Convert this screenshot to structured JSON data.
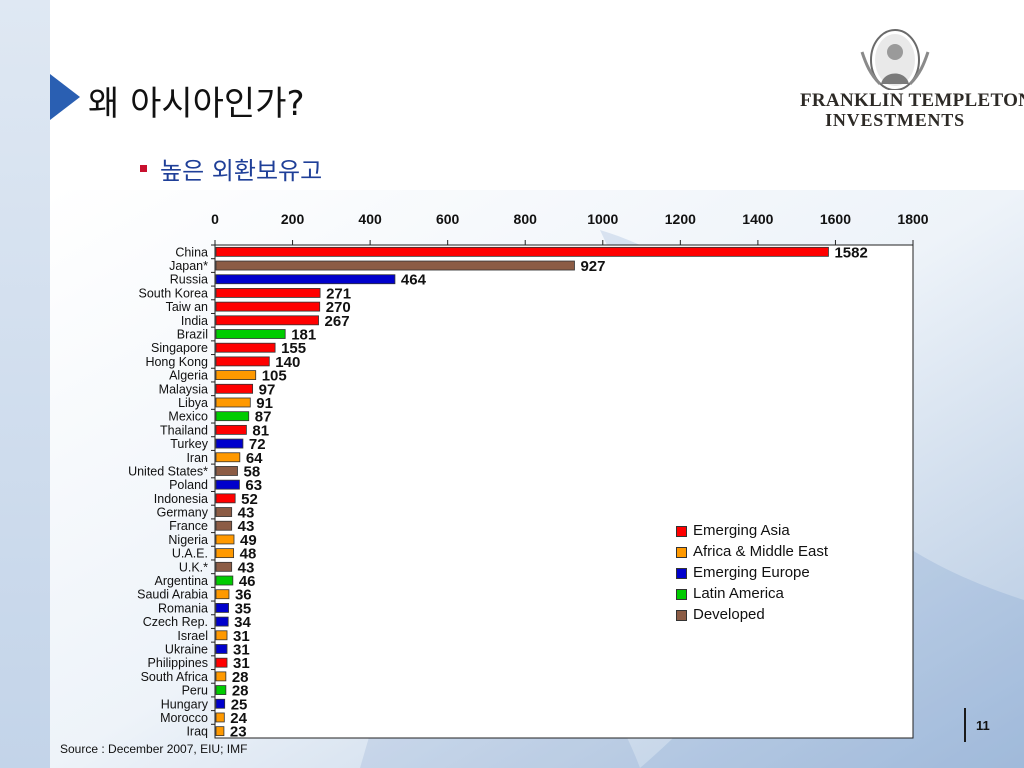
{
  "slide": {
    "title": "왜 아시아인가?",
    "bullet": "높은 외환보유고",
    "source": "Source : December 2007, EIU; IMF",
    "page_number": "11"
  },
  "logo": {
    "line1": "FRANKLIN TEMPLETON",
    "line2": "INVESTMENTS"
  },
  "legend": {
    "items": [
      {
        "label": "Emerging Asia",
        "color": "#ff0000"
      },
      {
        "label": "Africa & Middle East",
        "color": "#ff9900"
      },
      {
        "label": "Emerging Europe",
        "color": "#0000cc"
      },
      {
        "label": "Latin America",
        "color": "#00cc00"
      },
      {
        "label": "Developed",
        "color": "#8c5c45"
      }
    ]
  },
  "chart_data": {
    "type": "bar",
    "orientation": "horizontal",
    "title": "",
    "xlabel": "",
    "ylabel": "",
    "xlim": [
      0,
      1800
    ],
    "xticks": [
      0,
      200,
      400,
      600,
      800,
      1000,
      1200,
      1400,
      1600,
      1800
    ],
    "x_axis_position": "top",
    "grid": false,
    "legend_position": "bottom-right",
    "categories": [
      "China",
      "Japan*",
      "Russia",
      "South Korea",
      "Taiw an",
      "India",
      "Brazil",
      "Singapore",
      "Hong Kong",
      "Algeria",
      "Malaysia",
      "Libya",
      "Mexico",
      "Thailand",
      "Turkey",
      "Iran",
      "United States*",
      "Poland",
      "Indonesia",
      "Germany",
      "France",
      "Nigeria",
      "U.A.E.",
      "U.K.*",
      "Argentina",
      "Saudi Arabia",
      "Romania",
      "Czech Rep.",
      "Israel",
      "Ukraine",
      "Philippines",
      "South Africa",
      "Peru",
      "Hungary",
      "Morocco",
      "Iraq"
    ],
    "values": [
      1582,
      927,
      464,
      271,
      270,
      267,
      181,
      155,
      140,
      105,
      97,
      91,
      87,
      81,
      72,
      64,
      58,
      63,
      52,
      43,
      43,
      49,
      48,
      43,
      46,
      36,
      35,
      34,
      31,
      31,
      31,
      28,
      28,
      25,
      24,
      23
    ],
    "groups": [
      "Emerging Asia",
      "Developed",
      "Emerging Europe",
      "Emerging Asia",
      "Emerging Asia",
      "Emerging Asia",
      "Latin America",
      "Emerging Asia",
      "Emerging Asia",
      "Africa & Middle East",
      "Emerging Asia",
      "Africa & Middle East",
      "Latin America",
      "Emerging Asia",
      "Emerging Europe",
      "Africa & Middle East",
      "Developed",
      "Emerging Europe",
      "Emerging Asia",
      "Developed",
      "Developed",
      "Africa & Middle East",
      "Africa & Middle East",
      "Developed",
      "Latin America",
      "Africa & Middle East",
      "Emerging Europe",
      "Emerging Europe",
      "Africa & Middle East",
      "Emerging Europe",
      "Emerging Asia",
      "Africa & Middle East",
      "Latin America",
      "Emerging Europe",
      "Africa & Middle East",
      "Africa & Middle East"
    ]
  }
}
